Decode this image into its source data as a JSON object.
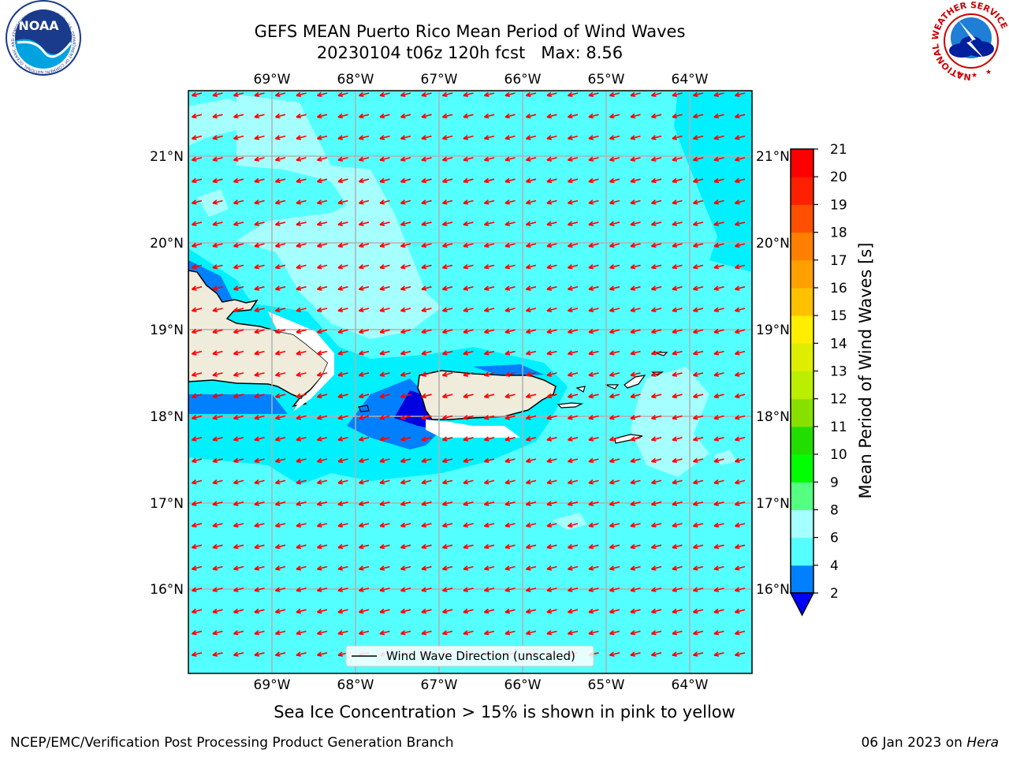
{
  "title": {
    "line1": "GEFS MEAN Puerto Rico Mean Period of Wind Waves",
    "line2": "20230104 t06z 120h fcst   Max: 8.56"
  },
  "map": {
    "lon_ticks": [
      "69°W",
      "68°W",
      "67°W",
      "66°W",
      "65°W",
      "64°W"
    ],
    "lat_ticks": [
      "21°N",
      "20°N",
      "19°N",
      "18°N",
      "17°N",
      "16°N"
    ],
    "legend": "Wind Wave Direction (unscaled)",
    "colors": {
      "ocean_base": "#54ffff",
      "light_band": "#a6ffff",
      "cyan_band": "#00f0ff",
      "blue_band": "#0080ff",
      "dark_blue_band": "#0000e0",
      "land": "#efecdc",
      "arrow": "#ff0000",
      "grid": "#b0b0b0"
    }
  },
  "colorbar": {
    "label": "Mean Period of Wind Waves [s]",
    "ticks": [
      "2",
      "4",
      "6",
      "8",
      "9",
      "10",
      "11",
      "12",
      "13",
      "14",
      "15",
      "16",
      "17",
      "18",
      "19",
      "20",
      "21"
    ],
    "colors": [
      "#0080ff",
      "#00ffff",
      "#54ffff",
      "#a6ffff",
      "#55ff80",
      "#00ff00",
      "#22dd00",
      "#88e000",
      "#bbee00",
      "#ddee00",
      "#ffee00",
      "#ffc000",
      "#ffa000",
      "#ff8000",
      "#ff5000",
      "#ff2000",
      "#ff0000"
    ],
    "underflow_color": "#0000ff"
  },
  "notes": {
    "ice": "Sea Ice Concentration > 15% is shown in pink to yellow"
  },
  "footer": {
    "left": "NCEP/EMC/Verification Post Processing Product Generation Branch",
    "date": "06 Jan 2023 on ",
    "machine": "Hera"
  },
  "logos": {
    "noaa_text": "NOAA",
    "noaa_ring": "NATIONAL OCEANIC AND ATMOSPHERIC ADMINISTRATION · U.S. DEPARTMENT OF COMMERCE",
    "nws_ring": "NATIONAL WEATHER SERVICE"
  }
}
